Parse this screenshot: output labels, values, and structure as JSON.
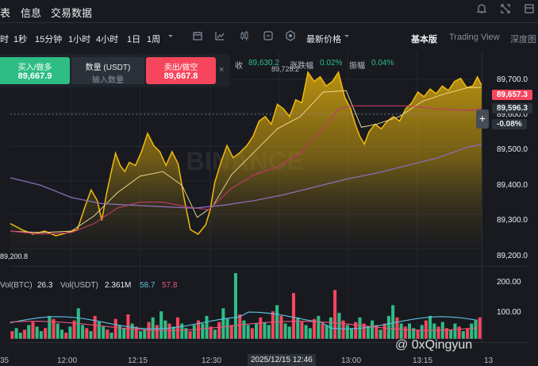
{
  "tabs": [
    {
      "label": "表"
    },
    {
      "label": "信息"
    },
    {
      "label": "交易数据"
    }
  ],
  "timeframes": [
    "时",
    "1秒",
    "15分钟",
    "1小时",
    "4小时",
    "1日",
    "1周"
  ],
  "price_type": "最新价格",
  "views": [
    "基本版",
    "Trading View",
    "深度图"
  ],
  "order_panel": {
    "buy_label": "买入/做多",
    "buy_price": "89,667.9",
    "qty_label": "数量 (USDT)",
    "qty_placeholder": "输入数量",
    "sell_label": "卖出/做空",
    "sell_price": "89,667.8",
    "close": "×"
  },
  "stats": {
    "close_label": "收",
    "close_value": "89,630.2",
    "change_label": "涨跌幅",
    "change_value": "0.02%",
    "amp_label": "振幅",
    "amp_value": "0.04%"
  },
  "high_marker": "89,728.2",
  "low_marker": "89,200.8",
  "price_axis": [
    "89,700.0",
    "89,600.0",
    "89,500.0",
    "89,400.0",
    "89,300.0",
    "89,200.0"
  ],
  "price_tags": {
    "last": "89,657.3",
    "ma": "89,596.3",
    "change": "-0.08%"
  },
  "volume": {
    "btc_label": "Vol(BTC)",
    "btc_value": "26.3",
    "usdt_label": "Vol(USDT)",
    "usdt_value": "2.361M",
    "ma1": "58.7",
    "ma2": "57.8",
    "axis": [
      "200.00",
      "100.00"
    ]
  },
  "time_axis": [
    "35",
    "12:00",
    "12:15",
    "12:30",
    "2025/12/15 12:46",
    "13:00",
    "13:15",
    "13"
  ],
  "watermark": "@ 0xQingyun",
  "colors": {
    "up": "#2ebd85",
    "down": "#f6465d",
    "line": "#f0b90b",
    "ma_pink": "#c0396b",
    "ma_purple": "#8a6bb0"
  }
}
